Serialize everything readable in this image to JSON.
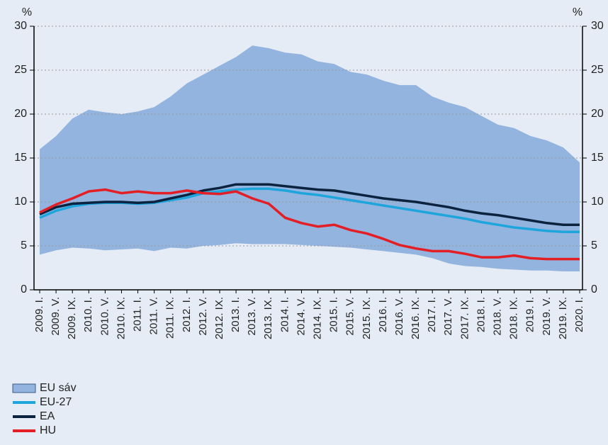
{
  "chart_data": {
    "type": "line",
    "y_label": "%",
    "y2_label": "%",
    "categories": [
      "2009. I.",
      "2009. V.",
      "2009. IX.",
      "2010. I.",
      "2010. V.",
      "2010. IX.",
      "2011. I.",
      "2011. V.",
      "2011. IX.",
      "2012. I.",
      "2012. V.",
      "2012. IX.",
      "2013. I.",
      "2013. V.",
      "2013. IX.",
      "2014. I.",
      "2014. V.",
      "2014. IX.",
      "2015. I.",
      "2015. V.",
      "2015. IX.",
      "2016. I.",
      "2016. V.",
      "2016. IX.",
      "2017. I.",
      "2017. V.",
      "2017. IX.",
      "2018. I.",
      "2018. V.",
      "2018. IX.",
      "2019. I.",
      "2019. V.",
      "2019. IX.",
      "2020. I."
    ],
    "band": {
      "name": "EU sáv",
      "color": "#93b4df",
      "high": [
        16,
        17.5,
        19.5,
        20.5,
        20.2,
        20,
        20.3,
        20.8,
        22,
        23.5,
        24.5,
        25.5,
        26.5,
        27.8,
        27.5,
        27,
        26.8,
        26,
        25.7,
        24.8,
        24.5,
        23.8,
        23.3,
        23.3,
        22,
        21.3,
        20.8,
        19.8,
        18.8,
        18.4,
        17.5,
        17,
        16.2,
        14.5
      ],
      "low": [
        4,
        4.5,
        4.8,
        4.7,
        4.5,
        4.6,
        4.7,
        4.4,
        4.8,
        4.7,
        5,
        5.1,
        5.3,
        5.2,
        5.2,
        5.2,
        5.1,
        5,
        4.9,
        4.8,
        4.6,
        4.4,
        4.2,
        4,
        3.6,
        3,
        2.7,
        2.6,
        2.4,
        2.3,
        2.2,
        2.2,
        2.1,
        2.1
      ]
    },
    "series": [
      {
        "name": "EU-27",
        "color": "#1ea5dc",
        "values": [
          8.2,
          9.0,
          9.5,
          9.8,
          9.9,
          9.9,
          9.8,
          9.9,
          10.2,
          10.5,
          11.0,
          11.2,
          11.4,
          11.5,
          11.5,
          11.3,
          11.0,
          10.8,
          10.5,
          10.2,
          9.9,
          9.6,
          9.3,
          9.0,
          8.7,
          8.4,
          8.1,
          7.7,
          7.4,
          7.1,
          6.9,
          6.7,
          6.6,
          6.6
        ]
      },
      {
        "name": "EA",
        "color": "#0c2340",
        "values": [
          8.6,
          9.4,
          9.8,
          9.9,
          10.0,
          10.0,
          9.9,
          10.0,
          10.4,
          10.8,
          11.3,
          11.6,
          12.0,
          12.0,
          12.0,
          11.8,
          11.6,
          11.4,
          11.3,
          11.0,
          10.7,
          10.4,
          10.2,
          10.0,
          9.7,
          9.4,
          9.0,
          8.7,
          8.5,
          8.2,
          7.9,
          7.6,
          7.4,
          7.4
        ]
      },
      {
        "name": "HU",
        "color": "#e31e24",
        "values": [
          8.8,
          9.7,
          10.4,
          11.2,
          11.4,
          11.0,
          11.2,
          11.0,
          11.0,
          11.3,
          11.0,
          10.9,
          11.2,
          10.4,
          9.8,
          8.2,
          7.6,
          7.2,
          7.4,
          6.8,
          6.4,
          5.8,
          5.1,
          4.7,
          4.4,
          4.4,
          4.1,
          3.7,
          3.7,
          3.9,
          3.6,
          3.5,
          3.5,
          3.5
        ]
      }
    ],
    "ylim": [
      0,
      30
    ],
    "yticks": [
      0,
      5,
      10,
      15,
      20,
      25,
      30
    ],
    "y2lim": [
      0,
      30
    ],
    "y2ticks": [
      0,
      5,
      10,
      15,
      20,
      25,
      30
    ],
    "grid": true
  }
}
